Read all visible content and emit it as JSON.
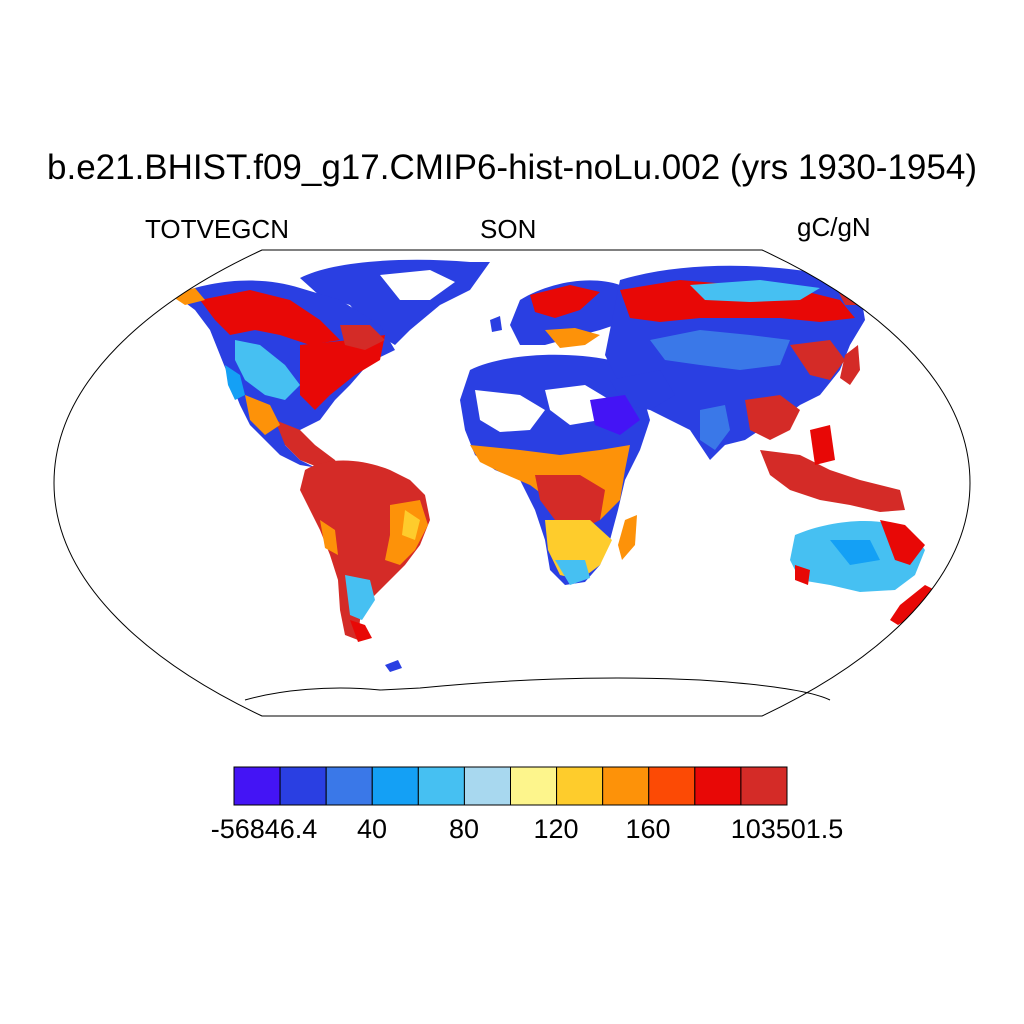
{
  "title": "b.e21.BHIST.f09_g17.CMIP6-hist-noLu.002 (yrs 1930-1954)",
  "left_string": "TOTVEGCN",
  "center_string": "SON",
  "right_string": "gC/gN",
  "projection": "Robinson",
  "colorbar": {
    "colors": [
      "#4414f5",
      "#2a3fe2",
      "#3a78e8",
      "#14a0f5",
      "#46c0f2",
      "#a8d8ef",
      "#fdf58c",
      "#fecc2c",
      "#fd9209",
      "#fc4a05",
      "#e80806",
      "#d42b27"
    ],
    "labels": [
      "-56846.4",
      "40",
      "80",
      "120",
      "160",
      "103501.5"
    ]
  },
  "map_summary": {
    "high_values_red": [
      "Amazon",
      "Central Africa",
      "Southeast Asia",
      "Eastern North America",
      "Siberia",
      "New Zealand"
    ],
    "low_values_blue": [
      "Greenland",
      "Sahara",
      "Arabian Peninsula",
      "Central Asia",
      "Australia interior",
      "Antarctica edge"
    ]
  }
}
